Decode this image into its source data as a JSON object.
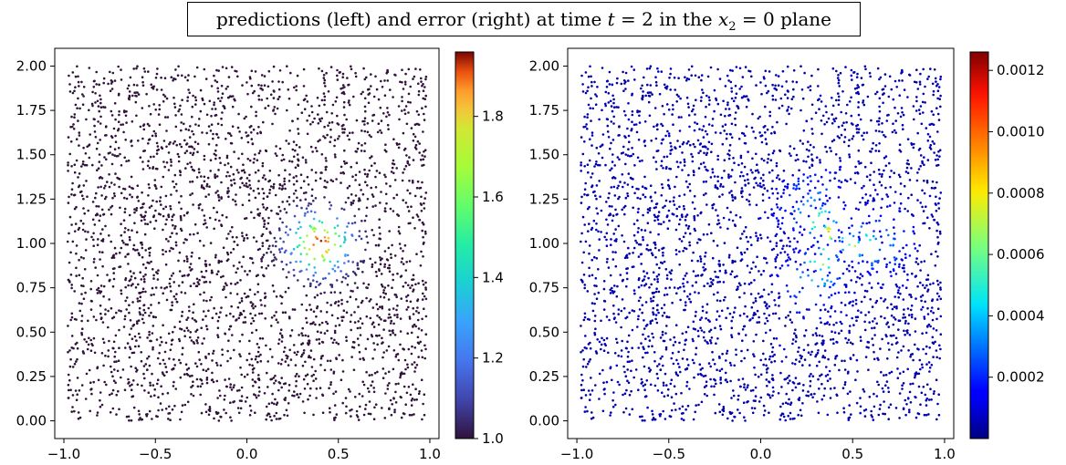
{
  "figure": {
    "title_parts": {
      "pre": "predictions (left) and error (right) at time ",
      "t": "t",
      "eq1": " = 2 in the ",
      "x": "x",
      "sub": "2",
      "eq2": " = 0 plane"
    }
  },
  "chart_data": [
    {
      "type": "scatter",
      "name": "predictions",
      "xlim": [
        -1.05,
        1.05
      ],
      "ylim": [
        -0.1,
        2.1
      ],
      "xticks": [
        -1.0,
        -0.5,
        0.0,
        0.5,
        1.0
      ],
      "xtick_labels": [
        "−1.0",
        "−0.5",
        "0.0",
        "0.5",
        "1.0"
      ],
      "yticks": [
        0.0,
        0.25,
        0.5,
        0.75,
        1.0,
        1.25,
        1.5,
        1.75,
        2.0
      ],
      "ytick_labels": [
        "0.00",
        "0.25",
        "0.50",
        "0.75",
        "1.00",
        "1.25",
        "1.50",
        "1.75",
        "2.00"
      ],
      "points": {
        "count": 3000,
        "x_range": [
          -0.98,
          0.98
        ],
        "y_range": [
          0.0,
          2.0
        ]
      },
      "field": {
        "type": "gaussian_bump",
        "center": [
          0.4,
          1.0
        ],
        "base": 1.0,
        "peak": 1.95,
        "sigma": 0.1
      },
      "colorbar": {
        "colormap": "turbo",
        "range": [
          1.0,
          1.96
        ],
        "ticks": [
          1.0,
          1.2,
          1.4,
          1.6,
          1.8
        ],
        "tick_labels": [
          "1.0",
          "1.2",
          "1.4",
          "1.6",
          "1.8"
        ]
      },
      "grid": false
    },
    {
      "type": "scatter",
      "name": "error",
      "xlim": [
        -1.05,
        1.05
      ],
      "ylim": [
        -0.1,
        2.1
      ],
      "xticks": [
        -1.0,
        -0.5,
        0.0,
        0.5,
        1.0
      ],
      "xtick_labels": [
        "−1.0",
        "−0.5",
        "0.0",
        "0.5",
        "1.0"
      ],
      "yticks": [
        0.0,
        0.25,
        0.5,
        0.75,
        1.0,
        1.25,
        1.5,
        1.75,
        2.0
      ],
      "ytick_labels": [
        "0.00",
        "0.25",
        "0.50",
        "0.75",
        "1.00",
        "1.25",
        "1.50",
        "1.75",
        "2.00"
      ],
      "points": {
        "count": 3000,
        "x_range": [
          -0.98,
          0.98
        ],
        "y_range": [
          0.0,
          2.0
        ]
      },
      "field": {
        "type": "oscillating_ring",
        "center": [
          0.4,
          1.0
        ],
        "peak": 0.00125,
        "background": 3e-05
      },
      "colorbar": {
        "colormap": "jet",
        "range": [
          0.0,
          0.00126
        ],
        "ticks": [
          0.0002,
          0.0004,
          0.0006,
          0.0008,
          0.001,
          0.0012
        ],
        "tick_labels": [
          "0.0002",
          "0.0004",
          "0.0006",
          "0.0008",
          "0.0010",
          "0.0012"
        ]
      },
      "grid": false
    }
  ]
}
